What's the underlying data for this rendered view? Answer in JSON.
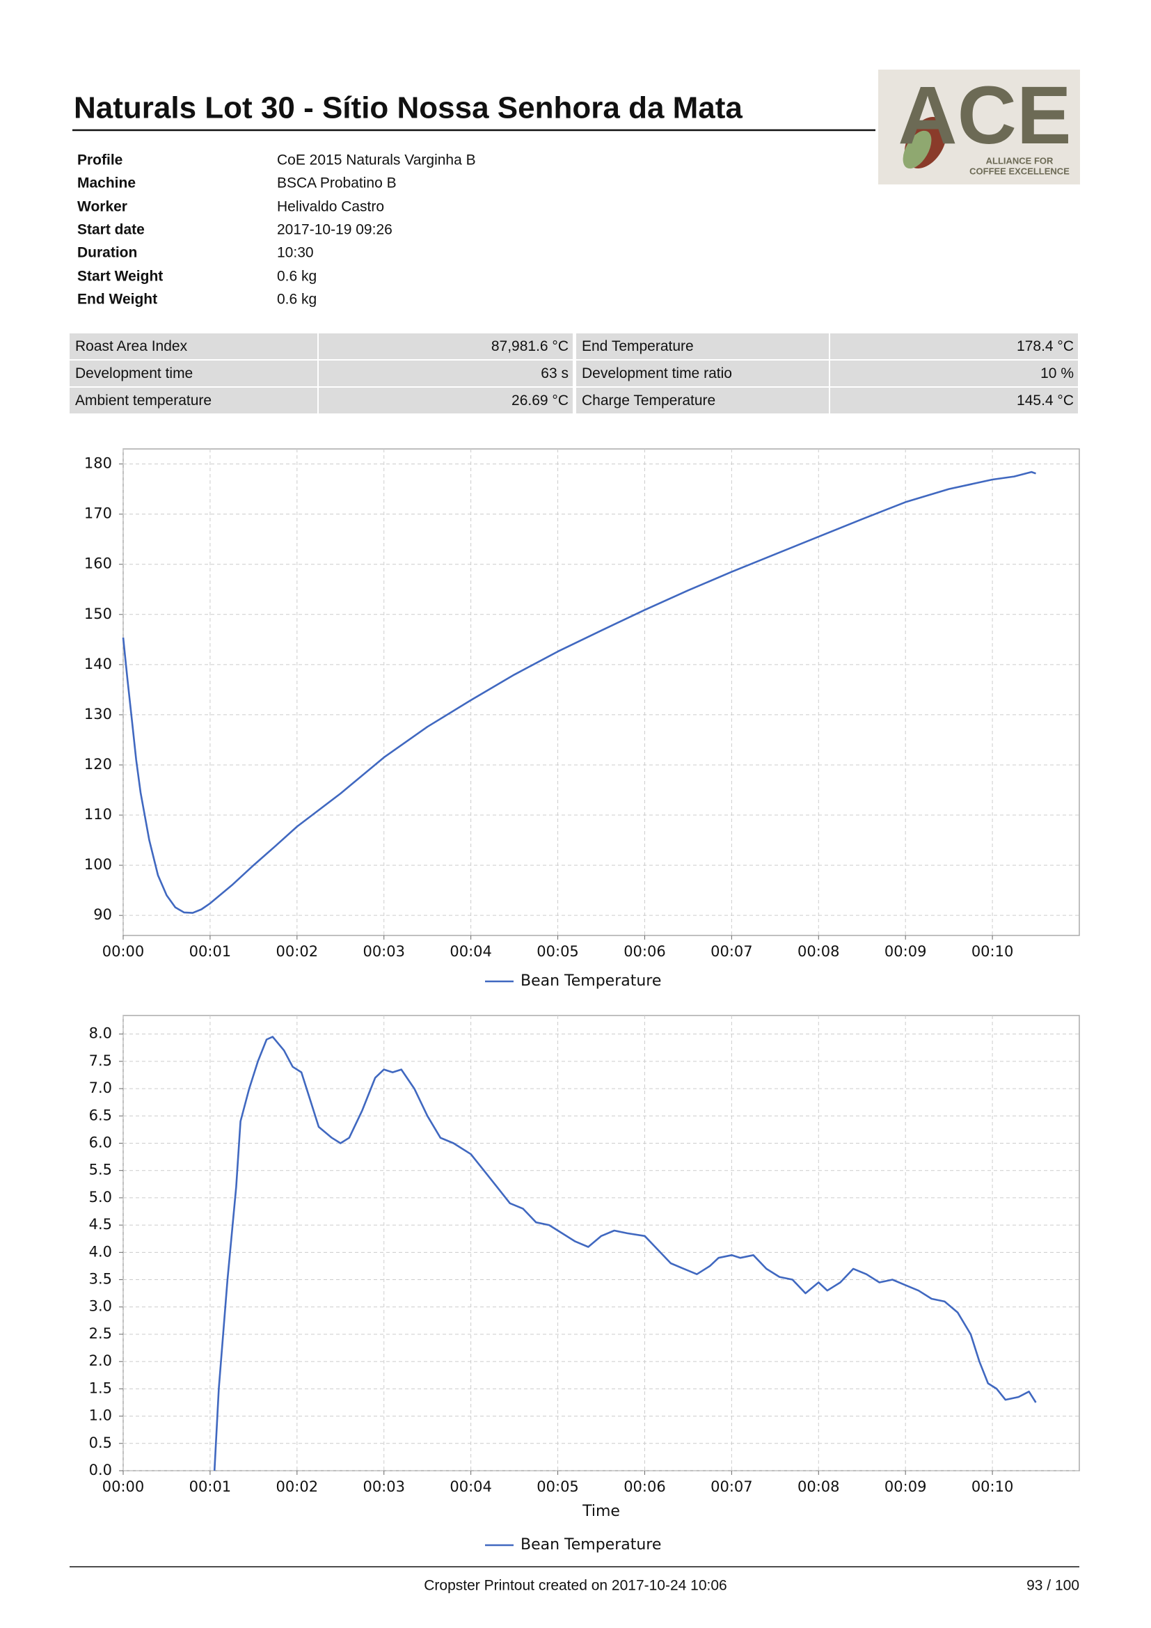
{
  "header": {
    "title": "Naturals Lot 30 - Sítio Nossa Senhora da Mata"
  },
  "logo": {
    "mark": "ACE",
    "tagline": [
      "ALLIANCE FOR",
      "COFFEE EXCELLENCE"
    ]
  },
  "info": [
    [
      "Profile",
      "CoE 2015 Naturals Varginha B"
    ],
    [
      "Machine",
      "BSCA Probatino B"
    ],
    [
      "Worker",
      "Helivaldo Castro"
    ],
    [
      "Start date",
      "2017-10-19 09:26"
    ],
    [
      "Duration",
      "10:30"
    ],
    [
      "Start Weight",
      "0.6 kg"
    ],
    [
      "End Weight",
      "0.6 kg"
    ]
  ],
  "stats": [
    [
      "Roast Area Index",
      "87,981.6 °C",
      "End Temperature",
      "178.4 °C"
    ],
    [
      "Development time",
      "63 s",
      "Development time ratio",
      "10 %"
    ],
    [
      "Ambient temperature",
      "26.69 °C",
      "Charge Temperature",
      "145.4 °C"
    ]
  ],
  "chart_data": [
    {
      "type": "line",
      "x": [
        0,
        0.05,
        0.1,
        0.15,
        0.2,
        0.3,
        0.4,
        0.5,
        0.6,
        0.7,
        0.8,
        0.9,
        1.0,
        1.25,
        1.5,
        1.75,
        2.0,
        2.5,
        3.0,
        3.5,
        4.0,
        4.5,
        5.0,
        5.5,
        6.0,
        6.5,
        7.0,
        7.5,
        8.0,
        8.5,
        9.0,
        9.5,
        10.0,
        10.25,
        10.45,
        10.5
      ],
      "series": [
        {
          "name": "Bean Temperature",
          "color": "#4068c0",
          "values": [
            145.4,
            137,
            129,
            121,
            114.5,
            105,
            98,
            94,
            91.6,
            90.6,
            90.5,
            91.2,
            92.4,
            96,
            100,
            103.8,
            107.7,
            114.3,
            121.5,
            127.6,
            132.9,
            138,
            142.6,
            146.8,
            150.9,
            154.8,
            158.5,
            162,
            165.5,
            169,
            172.4,
            175,
            176.9,
            177.5,
            178.4,
            178.1
          ]
        }
      ],
      "xlim": [
        0,
        11
      ],
      "xticks": [
        {
          "value": 0,
          "label": "00:00"
        },
        {
          "value": 1,
          "label": "00:01"
        },
        {
          "value": 2,
          "label": "00:02"
        },
        {
          "value": 3,
          "label": "00:03"
        },
        {
          "value": 4,
          "label": "00:04"
        },
        {
          "value": 5,
          "label": "00:05"
        },
        {
          "value": 6,
          "label": "00:06"
        },
        {
          "value": 7,
          "label": "00:07"
        },
        {
          "value": 8,
          "label": "00:08"
        },
        {
          "value": 9,
          "label": "00:09"
        },
        {
          "value": 10,
          "label": "00:10"
        }
      ],
      "ylim": [
        86,
        183
      ],
      "yticks": [
        90,
        100,
        110,
        120,
        130,
        140,
        150,
        160,
        170,
        180
      ],
      "grid": true,
      "legend": "bottom"
    },
    {
      "type": "line",
      "x_label": "Time",
      "x": [
        1.05,
        1.1,
        1.2,
        1.3,
        1.35,
        1.45,
        1.55,
        1.65,
        1.72,
        1.85,
        1.95,
        2.05,
        2.15,
        2.25,
        2.4,
        2.5,
        2.6,
        2.75,
        2.9,
        3.0,
        3.1,
        3.2,
        3.35,
        3.5,
        3.65,
        3.8,
        4.0,
        4.15,
        4.3,
        4.45,
        4.6,
        4.75,
        4.9,
        5.05,
        5.2,
        5.35,
        5.5,
        5.65,
        5.8,
        6.0,
        6.15,
        6.3,
        6.45,
        6.6,
        6.75,
        6.85,
        7.0,
        7.1,
        7.25,
        7.4,
        7.55,
        7.7,
        7.85,
        8.0,
        8.1,
        8.25,
        8.4,
        8.55,
        8.7,
        8.85,
        9.0,
        9.15,
        9.3,
        9.45,
        9.6,
        9.75,
        9.85,
        9.95,
        10.05,
        10.15,
        10.3,
        10.42,
        10.5
      ],
      "series": [
        {
          "name": "Bean Temperature",
          "color": "#4068c0",
          "values": [
            0,
            1.5,
            3.5,
            5.2,
            6.4,
            7.0,
            7.5,
            7.9,
            7.95,
            7.7,
            7.4,
            7.3,
            6.8,
            6.3,
            6.1,
            6.0,
            6.1,
            6.6,
            7.2,
            7.35,
            7.3,
            7.35,
            7.0,
            6.5,
            6.1,
            6.0,
            5.8,
            5.5,
            5.2,
            4.9,
            4.8,
            4.55,
            4.5,
            4.35,
            4.2,
            4.1,
            4.3,
            4.4,
            4.35,
            4.3,
            4.05,
            3.8,
            3.7,
            3.6,
            3.75,
            3.9,
            3.95,
            3.9,
            3.95,
            3.7,
            3.55,
            3.5,
            3.25,
            3.45,
            3.3,
            3.45,
            3.7,
            3.6,
            3.45,
            3.5,
            3.4,
            3.3,
            3.15,
            3.1,
            2.9,
            2.5,
            2.0,
            1.6,
            1.5,
            1.3,
            1.35,
            1.45,
            1.25
          ]
        }
      ],
      "xlim": [
        0,
        11
      ],
      "xticks": [
        {
          "value": 0,
          "label": "00:00"
        },
        {
          "value": 1,
          "label": "00:01"
        },
        {
          "value": 2,
          "label": "00:02"
        },
        {
          "value": 3,
          "label": "00:03"
        },
        {
          "value": 4,
          "label": "00:04"
        },
        {
          "value": 5,
          "label": "00:05"
        },
        {
          "value": 6,
          "label": "00:06"
        },
        {
          "value": 7,
          "label": "00:07"
        },
        {
          "value": 8,
          "label": "00:08"
        },
        {
          "value": 9,
          "label": "00:09"
        },
        {
          "value": 10,
          "label": "00:10"
        }
      ],
      "ylim": [
        0,
        8.34
      ],
      "yticks": [
        {
          "value": 0,
          "label": "0.0"
        },
        0.5,
        {
          "value": 1,
          "label": "1.0"
        },
        1.5,
        {
          "value": 2,
          "label": "2.0"
        },
        2.5,
        {
          "value": 3,
          "label": "3.0"
        },
        3.5,
        {
          "value": 4,
          "label": "4.0"
        },
        4.5,
        {
          "value": 5,
          "label": "5.0"
        },
        5.5,
        {
          "value": 6,
          "label": "6.0"
        },
        6.5,
        {
          "value": 7,
          "label": "7.0"
        },
        7.5,
        {
          "value": 8,
          "label": "8.0"
        }
      ],
      "grid": true,
      "legend": "bottom"
    }
  ],
  "footer": {
    "text": "Cropster Printout created on 2017-10-24 10:06",
    "page": "93 / 100"
  }
}
